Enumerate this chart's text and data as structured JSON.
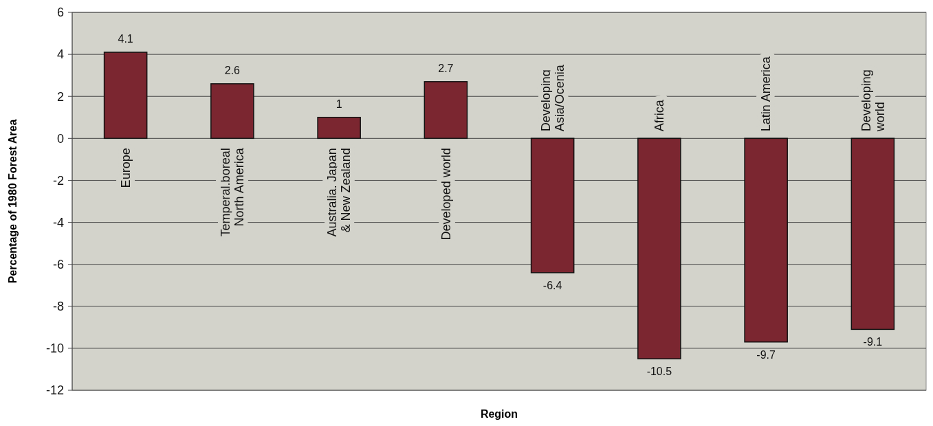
{
  "chart_data": {
    "type": "bar",
    "xlabel": "Region",
    "ylabel": "Percentage of 1980 Forest Area",
    "categories": [
      "Europe",
      "Temperal.boreal\nNorth America",
      "Australia, Japan\n& New Zealand",
      "Developed world",
      "Developing\nAsia/Ocenia",
      "Africa",
      "Latin America",
      "Developing\nworld"
    ],
    "values": [
      4.1,
      2.6,
      1,
      2.7,
      -6.4,
      -10.5,
      -9.7,
      -9.1
    ],
    "color": "#7b2630",
    "ylim": [
      -12,
      6
    ],
    "yticks": [
      -12,
      -10,
      -8,
      -6,
      -4,
      -2,
      0,
      2,
      4,
      6
    ],
    "grid": "y",
    "data_labels": true
  }
}
